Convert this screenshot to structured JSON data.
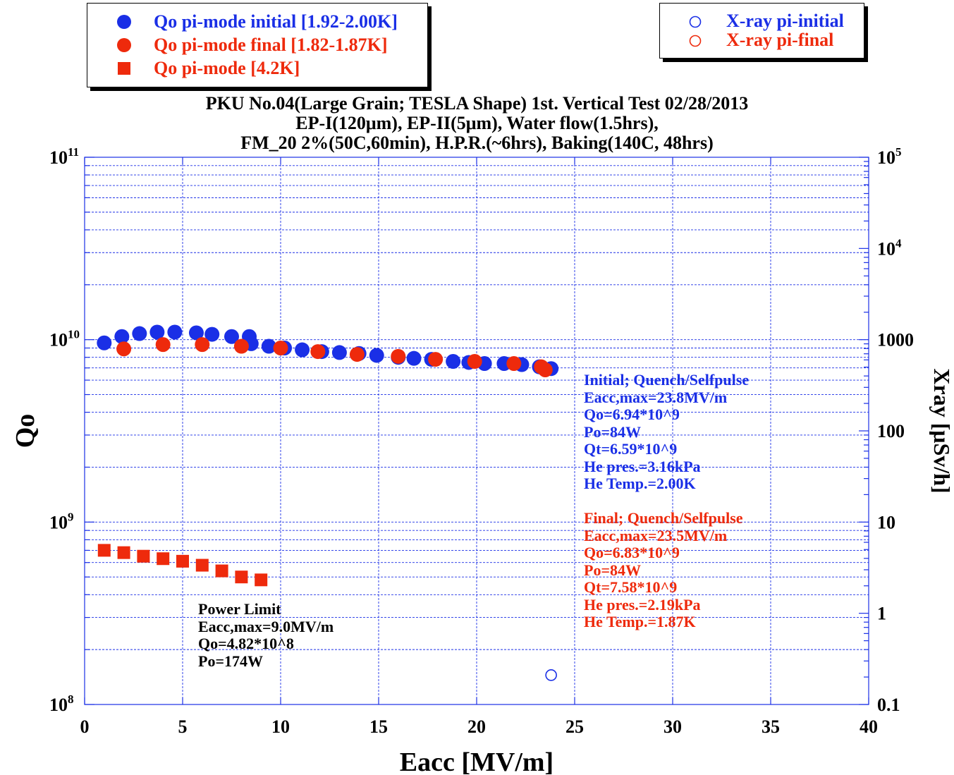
{
  "legend_left": {
    "items": [
      {
        "label": "Qo pi-mode initial [1.92-2.00K]",
        "marker": "filled-circle",
        "color": "#1a2fe6"
      },
      {
        "label": "Qo pi-mode final [1.82-1.87K]",
        "marker": "filled-circle",
        "color": "#ee2a0c"
      },
      {
        "label": "Qo pi-mode [4.2K]",
        "marker": "filled-square",
        "color": "#ee2a0c"
      }
    ]
  },
  "legend_right": {
    "items": [
      {
        "label": "X-ray pi-initial",
        "marker": "open-circle",
        "color": "#1a2fe6"
      },
      {
        "label": "X-ray pi-final",
        "marker": "open-circle",
        "color": "#ee2a0c"
      }
    ]
  },
  "title_lines": [
    "PKU No.04(Large Grain; TESLA Shape) 1st. Vertical Test 02/28/2013",
    "EP-I(120μm), EP-II(5μm), Water flow(1.5hrs),",
    "FM_20 2%(50C,60min), H.P.R.(~6hrs), Baking(140C, 48hrs)"
  ],
  "annotations": {
    "initial": {
      "color": "#1a2fe6",
      "lines": [
        "Initial; Quench/Selfpulse",
        "Eacc,max=23.8MV/m",
        "Qo=6.94*10^9",
        "Po=84W",
        "Qt=6.59*10^9",
        "He pres.=3.16kPa",
        "He Temp.=2.00K"
      ]
    },
    "final": {
      "color": "#ee2a0c",
      "lines": [
        "Final; Quench/Selfpulse",
        "Eacc,max=23.5MV/m",
        "Qo=6.83*10^9",
        "Po=84W",
        "Qt=7.58*10^9",
        "He pres.=2.19kPa",
        "He Temp.=1.87K"
      ]
    },
    "power_limit": {
      "color": "#000000",
      "lines": [
        "Power Limit",
        "Eacc,max=9.0MV/m",
        "Qo=4.82*10^8",
        "Po=174W"
      ]
    }
  },
  "chart_data": {
    "type": "scatter",
    "xlabel": "Eacc [MV/m]",
    "ylabel": "Qo",
    "y2label": "Xray [μSv/h]",
    "xlim": [
      0,
      40
    ],
    "ylim": [
      100000000.0,
      100000000000.0
    ],
    "yscale": "log",
    "y2lim": [
      0.1,
      100000
    ],
    "y2scale": "log",
    "grid": true,
    "legend_position": "top",
    "x_ticks": [
      0,
      5,
      10,
      15,
      20,
      25,
      30,
      35,
      40
    ],
    "y_ticks": [
      {
        "base": "10",
        "exp": "8",
        "value": 100000000.0
      },
      {
        "base": "10",
        "exp": "9",
        "value": 1000000000.0
      },
      {
        "base": "10",
        "exp": "10",
        "value": 10000000000.0
      },
      {
        "base": "10",
        "exp": "11",
        "value": 100000000000.0
      }
    ],
    "y2_ticks": [
      {
        "label": "0.1",
        "value": 0.1
      },
      {
        "label": "1",
        "value": 1
      },
      {
        "label": "10",
        "value": 10
      },
      {
        "label": "100",
        "value": 100
      },
      {
        "label": "1000",
        "value": 1000
      },
      {
        "base": "10",
        "exp": "4",
        "value": 10000
      },
      {
        "base": "10",
        "exp": "5",
        "value": 100000
      }
    ],
    "series": [
      {
        "name": "Qo pi-mode initial [1.92-2.00K]",
        "axis": "left",
        "marker": "filled-circle",
        "color": "#1a2fe6",
        "x": [
          1.0,
          1.9,
          2.8,
          3.7,
          4.6,
          5.7,
          6.5,
          7.5,
          8.4,
          8.5,
          9.4,
          10.2,
          11.1,
          12.1,
          13.0,
          14.0,
          14.9,
          16.0,
          16.8,
          17.7,
          18.8,
          19.6,
          20.4,
          21.4,
          22.3,
          23.2,
          23.8
        ],
        "y": [
          9600000000.0,
          10400000000.0,
          10800000000.0,
          11000000000.0,
          11000000000.0,
          10900000000.0,
          10700000000.0,
          10400000000.0,
          10400000000.0,
          9500000000.0,
          9200000000.0,
          9000000000.0,
          8800000000.0,
          8600000000.0,
          8500000000.0,
          8400000000.0,
          8200000000.0,
          8000000000.0,
          7900000000.0,
          7800000000.0,
          7600000000.0,
          7500000000.0,
          7400000000.0,
          7400000000.0,
          7300000000.0,
          7100000000.0,
          6940000000.0
        ]
      },
      {
        "name": "Qo pi-mode final [1.82-1.87K]",
        "axis": "left",
        "marker": "filled-circle",
        "color": "#ee2a0c",
        "x": [
          2.0,
          4.0,
          6.0,
          8.0,
          10.0,
          11.9,
          13.9,
          16.0,
          17.9,
          19.9,
          21.9,
          23.3,
          23.5
        ],
        "y": [
          8900000000.0,
          9400000000.0,
          9400000000.0,
          9200000000.0,
          9000000000.0,
          8600000000.0,
          8300000000.0,
          8100000000.0,
          7800000000.0,
          7600000000.0,
          7400000000.0,
          7100000000.0,
          6830000000.0
        ]
      },
      {
        "name": "Qo pi-mode [4.2K]",
        "axis": "left",
        "marker": "filled-square",
        "color": "#ee2a0c",
        "x": [
          1.0,
          2.0,
          3.0,
          4.0,
          5.0,
          6.0,
          7.0,
          8.0,
          9.0
        ],
        "y": [
          700000000.0,
          680000000.0,
          650000000.0,
          630000000.0,
          610000000.0,
          580000000.0,
          540000000.0,
          500000000.0,
          482000000.0
        ]
      },
      {
        "name": "X-ray pi-initial",
        "axis": "right",
        "marker": "open-circle",
        "color": "#1a2fe6",
        "x": [
          23.8
        ],
        "y": [
          0.21
        ]
      },
      {
        "name": "X-ray pi-final",
        "axis": "right",
        "marker": "open-circle",
        "color": "#ee2a0c",
        "x": [],
        "y": []
      }
    ]
  }
}
